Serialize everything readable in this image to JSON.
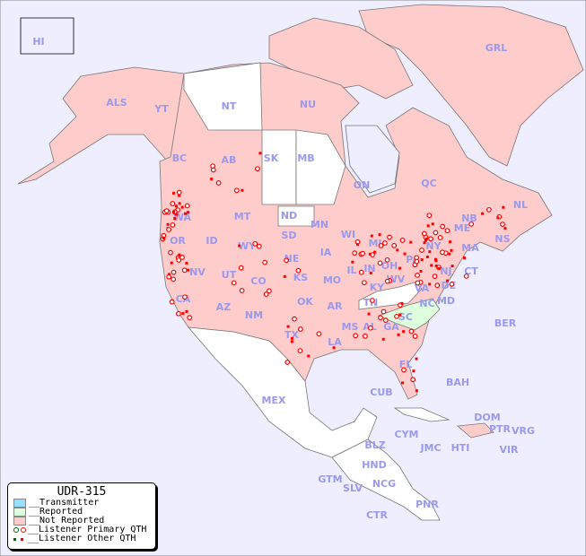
{
  "legend": {
    "title": "UDR-315",
    "items": [
      {
        "label": "__Transmitter",
        "color": "#99ddff"
      },
      {
        "label": "__Reported",
        "color": "#ddffdd"
      },
      {
        "label": "__Not Reported",
        "color": "#ffcccc"
      },
      {
        "label": "__Listener Primary QTH",
        "colors": [
          "#006600",
          "#ff0000"
        ]
      },
      {
        "label": "__Listener Other QTH",
        "colors": [
          "#006600",
          "#ff0000"
        ]
      }
    ]
  },
  "colors": {
    "ocean": "#eeeeff",
    "not_reported": "#ffcccc",
    "reported": "#ddffdd",
    "no_data": "#ffffff",
    "label": "#9999ee",
    "marker": "#ff0000"
  },
  "regions": {
    "reported": [
      "NC"
    ],
    "no_data": [
      "NT",
      "SK",
      "MB",
      "ND",
      "KY",
      "MEX",
      "Central America"
    ]
  },
  "labels": [
    "HI",
    "ALS",
    "YT",
    "NT",
    "NU",
    "GRL",
    "BC",
    "AB",
    "SK",
    "MB",
    "ON",
    "QC",
    "NL",
    "NB",
    "NS",
    "WA",
    "OR",
    "ID",
    "MT",
    "WY",
    "ND",
    "SD",
    "NE",
    "MN",
    "WI",
    "IA",
    "IL",
    "IN",
    "OH",
    "MI",
    "PA",
    "NY",
    "ME",
    "MA",
    "CT",
    "NJ",
    "DE",
    "MD",
    "VA",
    "WV",
    "KY",
    "TN",
    "NC",
    "SC",
    "GA",
    "AL",
    "MS",
    "LA",
    "AR",
    "MO",
    "KS",
    "OK",
    "TX",
    "NM",
    "CO",
    "UT",
    "AZ",
    "NV",
    "CA",
    "FL",
    "MEX",
    "CUB",
    "BAH",
    "BER",
    "DOM",
    "PTR",
    "VRG",
    "VIR",
    "HTI",
    "JMC",
    "CYM",
    "BLZ",
    "HND",
    "GTM",
    "SLV",
    "NCG",
    "CTR",
    "PNR"
  ]
}
